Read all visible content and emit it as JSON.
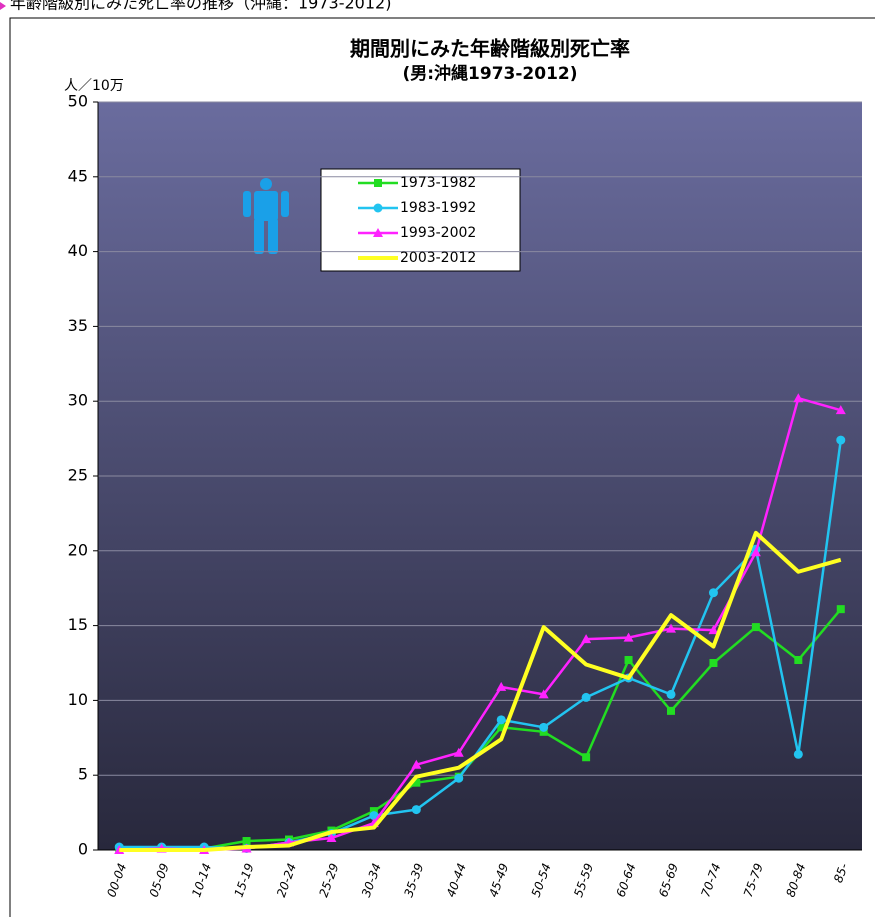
{
  "page_title": "年齢階級別にみた死亡率の推移（沖縄：1973-2012)",
  "chart_data": {
    "type": "line",
    "title": "期間別にみた年齢階級別死亡率",
    "subtitle": "(男:沖縄1973-2012)",
    "y_label": "人／10万",
    "categories": [
      "00-04",
      "05-09",
      "10-14",
      "15-19",
      "20-24",
      "25-29",
      "30-34",
      "35-39",
      "40-44",
      "45-49",
      "50-54",
      "55-59",
      "60-64",
      "65-69",
      "70-74",
      "75-79",
      "80-84",
      "85-"
    ],
    "series": [
      {
        "name": "1973-1982",
        "color": "#22dd22",
        "marker": "square",
        "values": [
          0.1,
          0.1,
          0.1,
          0.6,
          0.7,
          1.3,
          2.6,
          4.5,
          4.9,
          8.2,
          7.9,
          6.2,
          12.7,
          9.3,
          12.5,
          14.9,
          12.7,
          16.1
        ]
      },
      {
        "name": "1983-1992",
        "color": "#22c4f0",
        "marker": "circle",
        "values": [
          0.2,
          0.2,
          0.2,
          0.1,
          0.5,
          1.1,
          2.3,
          2.7,
          4.8,
          8.7,
          8.2,
          10.2,
          11.5,
          10.4,
          17.2,
          20.1,
          6.4,
          27.4
        ]
      },
      {
        "name": "1993-2002",
        "color": "#ff22ff",
        "marker": "triangle",
        "values": [
          0,
          0.1,
          0,
          0.1,
          0.5,
          0.8,
          1.8,
          5.7,
          6.5,
          10.9,
          10.4,
          14.1,
          14.2,
          14.8,
          14.7,
          19.9,
          30.2,
          29.4
        ]
      },
      {
        "name": "2003-2012",
        "color": "#ffff22",
        "marker": "none",
        "values": [
          0,
          0,
          0,
          0.2,
          0.3,
          1.2,
          1.5,
          4.9,
          5.5,
          7.4,
          14.9,
          12.4,
          11.5,
          15.7,
          13.6,
          21.2,
          18.6,
          19.4
        ]
      }
    ],
    "ylim": [
      0,
      50
    ],
    "yticks": [
      0,
      5,
      10,
      15,
      20,
      25,
      30,
      35,
      40,
      45,
      50
    ],
    "grid": true
  }
}
